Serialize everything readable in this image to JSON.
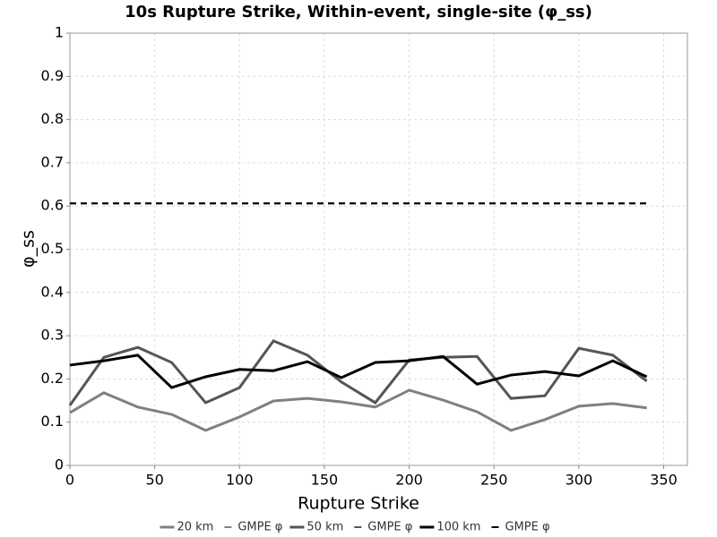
{
  "chart_data": {
    "type": "line",
    "title": "10s Rupture Strike, Within-event, single-site (φ_ss)",
    "x_label": "Rupture Strike",
    "y_label": "φ_ss",
    "x": [
      0,
      20,
      40,
      60,
      80,
      100,
      120,
      140,
      160,
      180,
      200,
      220,
      240,
      260,
      280,
      300,
      320,
      340
    ],
    "series": [
      {
        "name": "20 km",
        "color": "#808080",
        "dash": false,
        "values": [
          0.122,
          0.168,
          0.135,
          0.118,
          0.081,
          0.112,
          0.149,
          0.155,
          0.147,
          0.135,
          0.174,
          0.151,
          0.124,
          0.081,
          0.106,
          0.137,
          0.143,
          0.133
        ]
      },
      {
        "name": "GMPE φ",
        "color": "#808080",
        "dash": true,
        "values": [
          0.606,
          0.606,
          0.606,
          0.606,
          0.606,
          0.606,
          0.606,
          0.606,
          0.606,
          0.606,
          0.606,
          0.606,
          0.606,
          0.606,
          0.606,
          0.606,
          0.606,
          0.606
        ]
      },
      {
        "name": "50 km",
        "color": "#555555",
        "dash": false,
        "values": [
          0.139,
          0.25,
          0.273,
          0.238,
          0.145,
          0.18,
          0.288,
          0.255,
          0.193,
          0.145,
          0.244,
          0.25,
          0.252,
          0.155,
          0.161,
          0.271,
          0.255,
          0.195
        ]
      },
      {
        "name": "GMPE φ",
        "color": "#555555",
        "dash": true,
        "values": [
          0.606,
          0.606,
          0.606,
          0.606,
          0.606,
          0.606,
          0.606,
          0.606,
          0.606,
          0.606,
          0.606,
          0.606,
          0.606,
          0.606,
          0.606,
          0.606,
          0.606,
          0.606
        ]
      },
      {
        "name": "100 km",
        "color": "#000000",
        "dash": false,
        "values": [
          0.232,
          0.242,
          0.255,
          0.18,
          0.205,
          0.222,
          0.219,
          0.24,
          0.203,
          0.238,
          0.242,
          0.252,
          0.188,
          0.209,
          0.217,
          0.207,
          0.242,
          0.205
        ]
      },
      {
        "name": "GMPE φ",
        "color": "#000000",
        "dash": true,
        "values": [
          0.606,
          0.606,
          0.606,
          0.606,
          0.606,
          0.606,
          0.606,
          0.606,
          0.606,
          0.606,
          0.606,
          0.606,
          0.606,
          0.606,
          0.606,
          0.606,
          0.606,
          0.606
        ]
      }
    ],
    "xlim": [
      0,
      364
    ],
    "xticks": [
      0,
      50,
      100,
      150,
      200,
      250,
      300,
      350
    ],
    "ylim": [
      0,
      1
    ],
    "yticks": [
      0,
      0.1,
      0.2,
      0.3,
      0.4,
      0.5,
      0.6,
      0.7,
      0.8,
      0.9,
      1
    ],
    "grid": true,
    "legend": "bottom"
  }
}
